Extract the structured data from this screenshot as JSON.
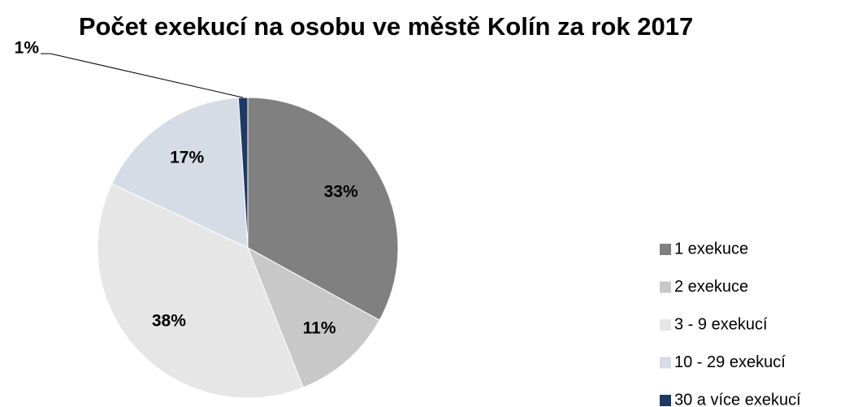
{
  "chart_data": {
    "type": "pie",
    "title": "Počet exekucí na osobu ve městě Kolín za rok 2017",
    "categories": [
      "1 exekuce",
      "2 exekuce",
      "3 - 9 exekucí",
      "10 - 29 exekucí",
      "30 a více exekucí"
    ],
    "values": [
      33,
      11,
      38,
      17,
      1
    ],
    "value_labels": [
      "33%",
      "11%",
      "38%",
      "17%",
      "1%"
    ],
    "colors": [
      "#808080",
      "#c8c8c8",
      "#e6e6e6",
      "#d6dce5",
      "#1f3864"
    ],
    "legend": "right"
  }
}
